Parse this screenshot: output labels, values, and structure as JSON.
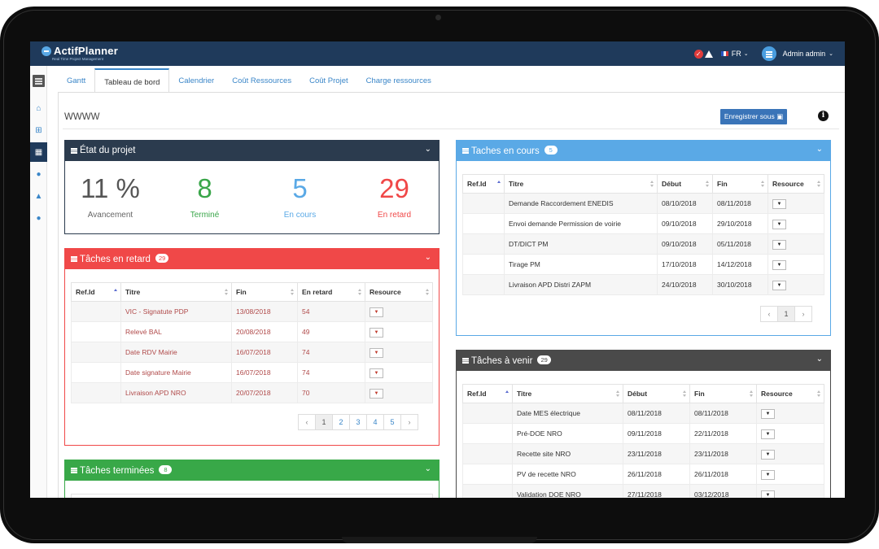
{
  "app": {
    "name": "ActifPlanner",
    "tagline": "Real Time Project Management"
  },
  "topbar": {
    "language": "FR",
    "user": "Admin admin",
    "alert_icons": [
      "check-circle-icon",
      "warning-icon"
    ]
  },
  "sidebar": [
    "menu-toggle-icon",
    "home-icon",
    "sitemap-icon",
    "calendar-icon",
    "user-icon",
    "warning-icon",
    "user-icon"
  ],
  "tabs": [
    {
      "label": "Gantt",
      "active": false
    },
    {
      "label": "Tableau de bord",
      "active": true
    },
    {
      "label": "Calendrier",
      "active": false
    },
    {
      "label": "Coût Ressources",
      "active": false
    },
    {
      "label": "Coût Projet",
      "active": false
    },
    {
      "label": "Charge ressources",
      "active": false
    }
  ],
  "page": {
    "title": "WWWW",
    "save_label": "Enregistrer sous"
  },
  "etat": {
    "title": "État du projet",
    "color": "#2b3b4e",
    "stats": [
      {
        "value": "11 %",
        "label": "Avancement",
        "color": "#555555"
      },
      {
        "value": "8",
        "label": "Terminé",
        "color": "#3aa64a"
      },
      {
        "value": "5",
        "label": "En cours",
        "color": "#5aa9e6"
      },
      {
        "value": "29",
        "label": "En retard",
        "color": "#f04848"
      }
    ]
  },
  "retard": {
    "title": "Tâches en retard",
    "badge": "29",
    "color": "#f04848",
    "columns": [
      "Ref.Id",
      "Titre",
      "Fin",
      "En retard",
      "Resource"
    ],
    "rows": [
      {
        "ref": "",
        "titre": "VIC - Signatute PDP",
        "fin": "13/08/2018",
        "retard": "54"
      },
      {
        "ref": "",
        "titre": "Relevé BAL",
        "fin": "20/08/2018",
        "retard": "49"
      },
      {
        "ref": "",
        "titre": "Date RDV Mairie",
        "fin": "16/07/2018",
        "retard": "74"
      },
      {
        "ref": "",
        "titre": "Date signature Mairie",
        "fin": "16/07/2018",
        "retard": "74"
      },
      {
        "ref": "",
        "titre": "Livraison APD NRO",
        "fin": "20/07/2018",
        "retard": "70"
      }
    ],
    "pager": {
      "prev": "‹",
      "pages": [
        "1",
        "2",
        "3",
        "4",
        "5"
      ],
      "next": "›"
    }
  },
  "terminees": {
    "title": "Tâches terminées",
    "badge": "8",
    "color": "#38a848"
  },
  "en_cours": {
    "title": "Taches en cours",
    "badge": "5",
    "color": "#5aa9e6",
    "columns": [
      "Ref.Id",
      "Titre",
      "Début",
      "Fin",
      "Resource"
    ],
    "rows": [
      {
        "ref": "",
        "titre": "Demande Raccordement ENEDIS",
        "debut": "08/10/2018",
        "fin": "08/11/2018"
      },
      {
        "ref": "",
        "titre": "Envoi demande Permission de voirie",
        "debut": "09/10/2018",
        "fin": "29/10/2018"
      },
      {
        "ref": "",
        "titre": "DT/DICT PM",
        "debut": "09/10/2018",
        "fin": "05/11/2018"
      },
      {
        "ref": "",
        "titre": "Tirage PM",
        "debut": "17/10/2018",
        "fin": "14/12/2018"
      },
      {
        "ref": "",
        "titre": "Livraison APD Distri ZAPM",
        "debut": "24/10/2018",
        "fin": "30/10/2018"
      }
    ],
    "pager": {
      "prev": "‹",
      "pages": [
        "1"
      ],
      "next": "›"
    }
  },
  "a_venir": {
    "title": "Tâches à venir",
    "badge": "29",
    "color": "#4a4a4a",
    "columns": [
      "Ref.Id",
      "Titre",
      "Début",
      "Fin",
      "Resource"
    ],
    "rows": [
      {
        "ref": "",
        "titre": "Date MES électrique",
        "debut": "08/11/2018",
        "fin": "08/11/2018"
      },
      {
        "ref": "",
        "titre": "Pré-DOE NRO",
        "debut": "09/11/2018",
        "fin": "22/11/2018"
      },
      {
        "ref": "",
        "titre": "Recette site NRO",
        "debut": "23/11/2018",
        "fin": "23/11/2018"
      },
      {
        "ref": "",
        "titre": "PV de recette NRO",
        "debut": "26/11/2018",
        "fin": "26/11/2018"
      },
      {
        "ref": "",
        "titre": "Validation DOE NRO",
        "debut": "27/11/2018",
        "fin": "03/12/2018"
      }
    ]
  },
  "dropdown_glyph": "▼"
}
